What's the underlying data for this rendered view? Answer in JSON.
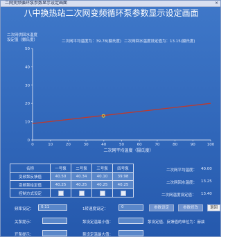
{
  "window": {
    "title": "二网变频循环泵参数显示设定画面",
    "close_glyph": "×"
  },
  "main_title": "八中换热站二次网变频循环泵参数显示设定画面",
  "chart_axis_title_left": [
    "二次网供回水温度",
    "设定值（摄氏度）"
  ],
  "chart_info": {
    "avg_temp": "二次网平均温度为：39.78(摄氏度)",
    "return_setpoint": "二次网回水温度设定值为：13.15(摄氏度)"
  },
  "chart_data": {
    "type": "line",
    "xlabel": "二次网平均温度（摄氏度）",
    "ylabel": "二次网供回水温度设定值（摄氏度）",
    "xlim": [
      0,
      100
    ],
    "ylim": [
      0,
      50
    ],
    "x_ticks": [
      0,
      10,
      20,
      30,
      40,
      50,
      60,
      70,
      80,
      90,
      100
    ],
    "y_ticks": [
      0,
      10,
      20,
      30,
      40,
      50
    ],
    "series": [
      {
        "x": [
          0,
          100
        ],
        "y": [
          9,
          20
        ]
      }
    ],
    "marker": {
      "x": 39.78,
      "y": 13.15
    },
    "colors": {
      "line": "#c0392b",
      "marker": "#f1d021",
      "axis": "#cfd9ee"
    },
    "grid": false
  },
  "table": {
    "headers": [
      "名称",
      "一号泵",
      "二号泵",
      "三号泵",
      "四号泵"
    ],
    "rows": [
      {
        "label": "变频泵反馈值",
        "values": [
          "40.50",
          "40.34",
          "40.10",
          "39.98"
        ]
      },
      {
        "label": "变频泵给定值",
        "values": [
          "40.25",
          "40.25",
          "40.25",
          "40.25"
        ]
      },
      {
        "label": "控制方式设定",
        "values": [
          "",
          "",
          "",
          ""
        ]
      }
    ]
  },
  "right_stats": [
    {
      "label": "二次网平均温度：",
      "value": "40.00"
    },
    {
      "label": "二次网回水温度：",
      "value": "13.25"
    },
    {
      "label": "二次网温度设定值：",
      "value": "13.40"
    }
  ],
  "settings": {
    "freq_label": "频率设定：",
    "freq_value": "0.11",
    "speed_label": "1转速度设定：",
    "speed_value": "0",
    "btn_a": "参数设定",
    "btn_b": "参数修改",
    "btn_back": "退回",
    "close_label": "关泵提示：",
    "min_label": "泵设定温最小值：",
    "note": "泵设定值、反馈值的单位为：赫兹",
    "open_label": "开泵提示：",
    "max_label": "泵设定温最大值："
  }
}
